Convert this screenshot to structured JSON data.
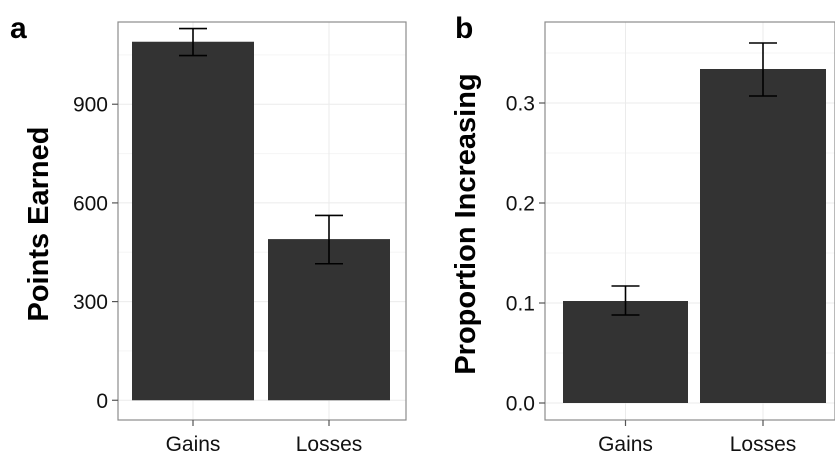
{
  "figure": {
    "panel_labels": [
      "a",
      "b"
    ]
  },
  "colors": {
    "bar": "#333333",
    "panel_border": "#8c8c8c",
    "grid_major": "#ebebeb",
    "grid_minor": "#f5f5f5",
    "tick": "#555555",
    "error_bar": "#000000"
  },
  "chart_data": [
    {
      "type": "bar",
      "panel": "a",
      "title": "",
      "xlabel": "",
      "ylabel": "Points Earned",
      "categories": [
        "Gains",
        "Losses"
      ],
      "values": [
        1090,
        490
      ],
      "error_low": [
        1048,
        415
      ],
      "error_high": [
        1130,
        562
      ],
      "ylim": [
        -60,
        1150
      ],
      "yticks": [
        0,
        300,
        600,
        900
      ],
      "ytick_labels": [
        "0",
        "300",
        "600",
        "900"
      ],
      "grid": true,
      "legend": "none"
    },
    {
      "type": "bar",
      "panel": "b",
      "title": "",
      "xlabel": "",
      "ylabel": "Proportion Increasing",
      "categories": [
        "Gains",
        "Losses"
      ],
      "values": [
        0.102,
        0.334
      ],
      "error_low": [
        0.088,
        0.307
      ],
      "error_high": [
        0.117,
        0.36
      ],
      "ylim": [
        -0.017,
        0.381
      ],
      "yticks": [
        0.0,
        0.1,
        0.2,
        0.3
      ],
      "ytick_labels": [
        "0.0",
        "0.1",
        "0.2",
        "0.3"
      ],
      "grid": true,
      "legend": "none"
    }
  ]
}
